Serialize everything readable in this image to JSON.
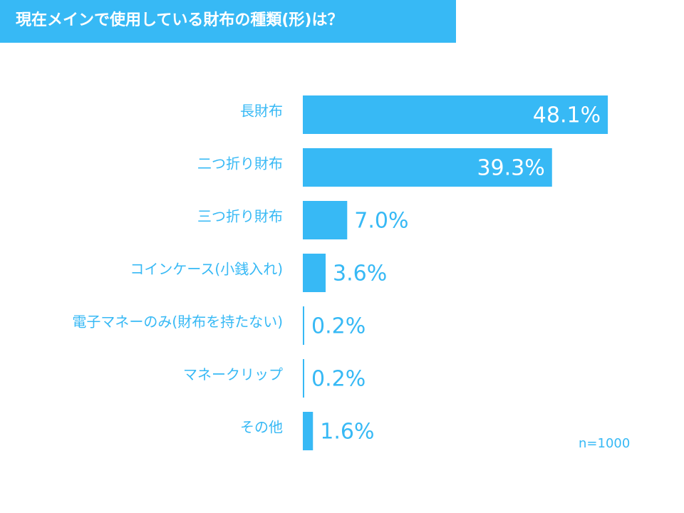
{
  "colors": {
    "accent": "#37b9f5",
    "label": "#37b9f5",
    "title_text": "#ffffff",
    "value_inside": "#ffffff"
  },
  "chart_data": {
    "type": "bar",
    "orientation": "horizontal",
    "title": "現在メインで使用している財布の種類(形)は？",
    "categories": [
      "長財布",
      "二つ折り財布",
      "三つ折り財布",
      "コインケース(小銭入れ)",
      "電子マネーのみ(財布を持たない)",
      "マネークリップ",
      "その他"
    ],
    "values": [
      48.1,
      39.3,
      7.0,
      3.6,
      0.2,
      0.2,
      1.6
    ],
    "value_labels": [
      "48.1%",
      "39.3%",
      "7.0%",
      "3.6%",
      "0.2%",
      "0.2%",
      "1.6%"
    ],
    "unit": "%",
    "xlim": [
      0,
      50
    ],
    "xlabel": "",
    "ylabel": "",
    "grid": false,
    "legend": false,
    "note": "n=1000"
  }
}
